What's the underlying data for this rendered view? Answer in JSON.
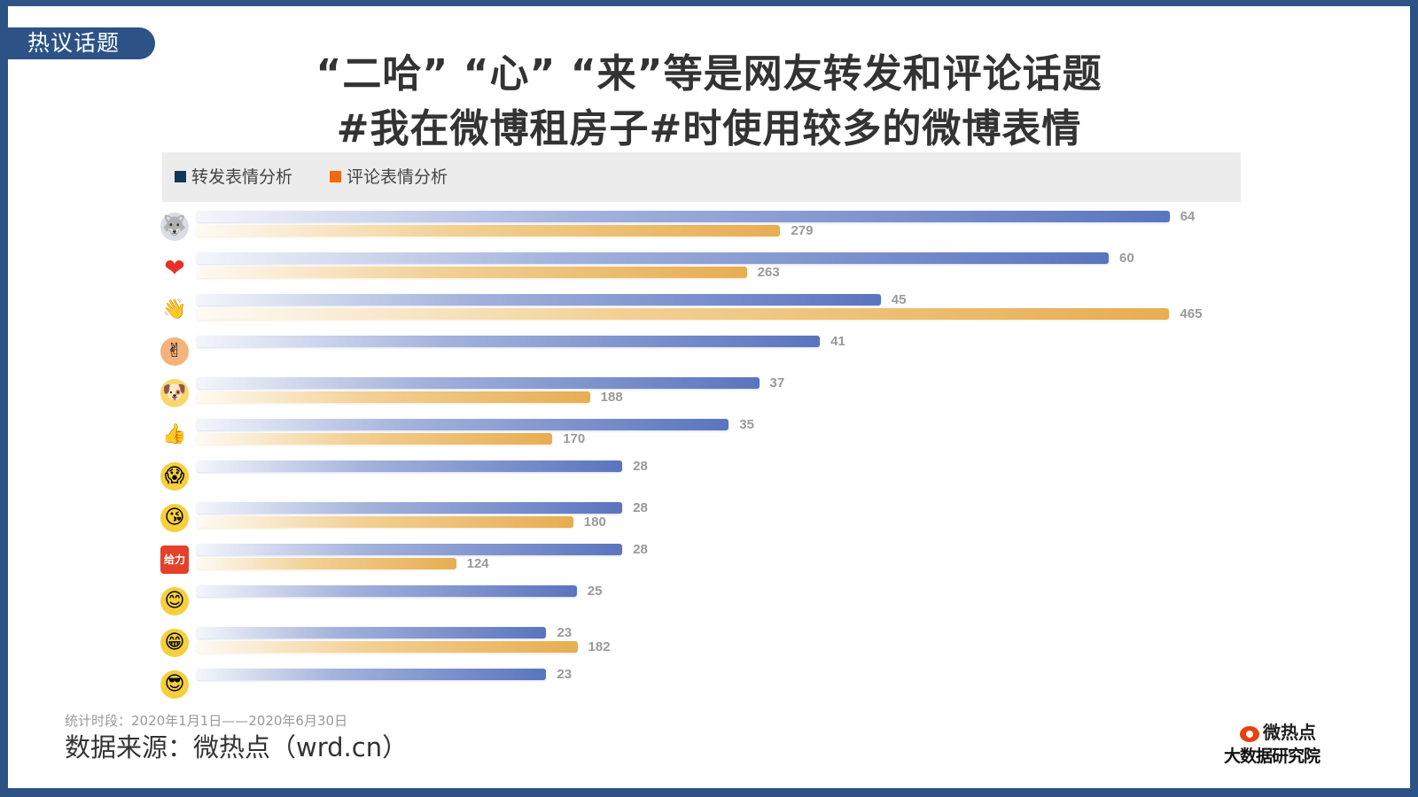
{
  "tag": {
    "label": "热议话题"
  },
  "title": {
    "line1": "“二哈” “心” “来”等是网友转发和评论话题",
    "line2": "#我在微博租房子#时使用较多的微博表情"
  },
  "legend": {
    "items": [
      {
        "label": "转发表情分析",
        "color": "#12375a"
      },
      {
        "label": "评论表情分析",
        "color": "#f26a10"
      }
    ]
  },
  "colors": {
    "frame": "#2c5286",
    "repost_bar": "#5a74be",
    "comment_bar": "#e7ad52",
    "value_label": "#999999"
  },
  "chart_data": {
    "type": "bar",
    "orientation": "horizontal",
    "title": "“二哈” “心” “来”等是网友转发和评论话题 #我在微博租房子#时使用较多的微博表情",
    "categories": [
      "二哈",
      "心",
      "来",
      "耶",
      "doge",
      "赞",
      "吃惊",
      "爱你",
      "给力",
      "害羞",
      "哈哈",
      "酷"
    ],
    "category_icons": [
      "husky-emoji",
      "heart-emoji",
      "come-hand-emoji",
      "yeah-hands-emoji",
      "doge-emoji",
      "thumbs-up-emoji",
      "shocked-emoji",
      "love-you-emoji",
      "geili-emoji",
      "shy-emoji",
      "grin-emoji",
      "cool-sunglasses-emoji"
    ],
    "series": [
      {
        "name": "转发表情分析",
        "values": [
          64,
          60,
          45,
          41,
          37,
          35,
          28,
          28,
          28,
          25,
          23,
          23
        ]
      },
      {
        "name": "评论表情分析",
        "values": [
          279,
          263,
          465,
          null,
          188,
          170,
          null,
          180,
          124,
          null,
          182,
          null
        ]
      }
    ],
    "xlabel": "",
    "ylabel": "",
    "grid": false,
    "legend_position": "top"
  },
  "rows": [
    {
      "icon": "🐺",
      "icon_bg": "#d9dde6",
      "blue": 64,
      "orange": 279
    },
    {
      "icon": "❤",
      "icon_bg": "transparent",
      "blue": 60,
      "orange": 263
    },
    {
      "icon": "👋",
      "icon_bg": "transparent",
      "blue": 45,
      "orange": 465
    },
    {
      "icon": "✌",
      "icon_bg": "#f3b37a",
      "blue": 41,
      "orange": null
    },
    {
      "icon": "🐶",
      "icon_bg": "#f6d86a",
      "blue": 37,
      "orange": 188
    },
    {
      "icon": "👍",
      "icon_bg": "transparent",
      "blue": 35,
      "orange": 170
    },
    {
      "icon": "😱",
      "icon_bg": "#f6cf3c",
      "blue": 28,
      "orange": null
    },
    {
      "icon": "😘",
      "icon_bg": "#f6cf3c",
      "blue": 28,
      "orange": 180
    },
    {
      "icon": "给力",
      "icon_bg": "#e5402a",
      "blue": 28,
      "orange": 124
    },
    {
      "icon": "😊",
      "icon_bg": "#f6cf3c",
      "blue": 25,
      "orange": null
    },
    {
      "icon": "😁",
      "icon_bg": "#f6cf3c",
      "blue": 23,
      "orange": 182
    },
    {
      "icon": "😎",
      "icon_bg": "#f6cf3c",
      "blue": 23,
      "orange": null
    }
  ],
  "footer": {
    "period": "统计时段：2020年1月1日——2020年6月30日",
    "source": "数据来源：微热点（wrd.cn）"
  },
  "logo": {
    "top": "微热点",
    "bottom": "大数据研究院"
  }
}
